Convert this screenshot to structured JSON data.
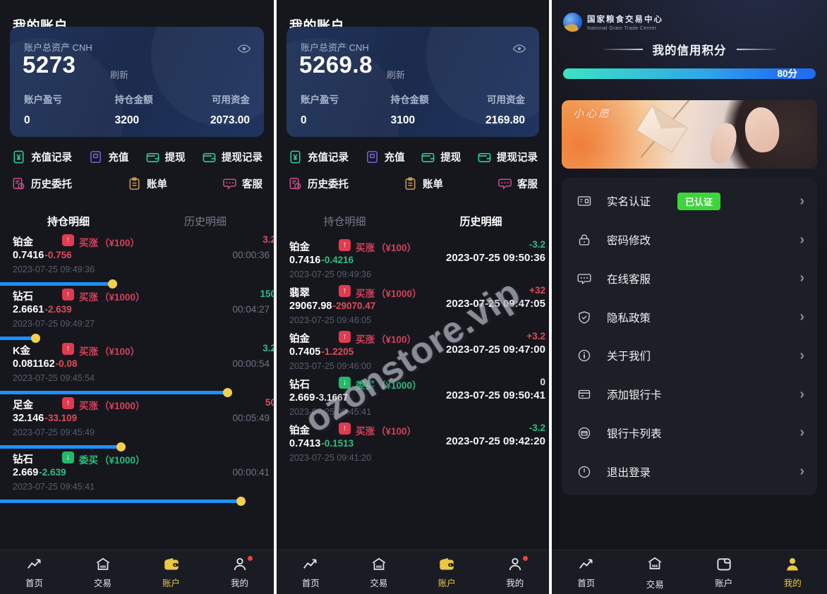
{
  "shared": {
    "title": "我的账户",
    "asset_label": "账户总资产 CNH",
    "refresh": "刷新",
    "stat_labels": [
      "账户盈亏",
      "持仓金额",
      "可用资金"
    ],
    "actions_row1": [
      "充值记录",
      "充值",
      "提现",
      "提现记录"
    ],
    "actions_row2": [
      "历史委托",
      "账单",
      "客服"
    ],
    "tabs": {
      "positions": "持仓明细",
      "history": "历史明细"
    },
    "nav": {
      "home": "首页",
      "trade": "交易",
      "account": "账户",
      "mine": "我的"
    }
  },
  "screen1": {
    "total": "5273",
    "stats": [
      "0",
      "3200",
      "2073.00"
    ],
    "positions": [
      {
        "name": "铂金",
        "arrow": "↑",
        "dir": "up",
        "type": "买涨",
        "amount": "（¥100）",
        "open": "0.7416",
        "close": "-0.756",
        "close_color": "red",
        "date": "2023-07-25 09:49:36",
        "result": "3.2",
        "result_color": "red",
        "timer": "00:00:36",
        "progress": 41
      },
      {
        "name": "钻石",
        "arrow": "↑",
        "dir": "up",
        "type": "买涨",
        "amount": "（¥1000）",
        "open": "2.6661",
        "close": "-2.639",
        "close_color": "red",
        "date": "2023-07-25 09:49:27",
        "result": "150",
        "result_color": "green",
        "timer": "00:04:27",
        "progress": 13
      },
      {
        "name": "K金",
        "arrow": "↑",
        "dir": "up",
        "type": "买涨",
        "amount": "（¥100）",
        "open": "0.081162",
        "close": "-0.08",
        "close_color": "red",
        "date": "2023-07-25 09:45:54",
        "result": "3.2",
        "result_color": "green",
        "timer": "00:00:54",
        "progress": 83
      },
      {
        "name": "足金",
        "arrow": "↑",
        "dir": "up",
        "type": "买涨",
        "amount": "（¥1000）",
        "open": "32.146",
        "close": "-33.109",
        "close_color": "red",
        "date": "2023-07-25 09:45:49",
        "result": "50",
        "result_color": "red",
        "timer": "00:05:49",
        "progress": 44
      },
      {
        "name": "钻石",
        "arrow": "↓",
        "dir": "down",
        "type": "委买",
        "amount": "（¥1000）",
        "open": "2.669",
        "close": "-2.639",
        "close_color": "green",
        "date": "2023-07-25 09:45:41",
        "timer": "00:00:41",
        "progress": 88
      }
    ]
  },
  "screen2": {
    "total": "5269.8",
    "stats": [
      "0",
      "3100",
      "2169.80"
    ],
    "watermark": "ozonstore.vip",
    "history": [
      {
        "name": "铂金",
        "arrow": "↑",
        "dir": "up",
        "type": "买涨",
        "amount": "（¥100）",
        "open": "0.7416",
        "close": "-0.4216",
        "close_color": "green",
        "date": "2023-07-25 09:49:36",
        "result": "-3.2",
        "result_color": "green",
        "close_time": "2023-07-25 09:50:36"
      },
      {
        "name": "翡翠",
        "arrow": "↑",
        "dir": "up",
        "type": "买涨",
        "amount": "（¥1000）",
        "open": "29067.98",
        "close": "-29070.47",
        "close_color": "red",
        "date": "2023-07-25 09:46:05",
        "result": "+32",
        "result_color": "red",
        "close_time": "2023-07-25 09:47:05"
      },
      {
        "name": "铂金",
        "arrow": "↑",
        "dir": "up",
        "type": "买涨",
        "amount": "（¥100）",
        "open": "0.7405",
        "close": "-1.2205",
        "close_color": "red",
        "date": "2023-07-25 09:46:00",
        "result": "+3.2",
        "result_color": "red",
        "close_time": "2023-07-25 09:47:00"
      },
      {
        "name": "钻石",
        "arrow": "↓",
        "dir": "down",
        "type": "委买",
        "amount": "（¥1000）",
        "open": "2.669",
        "close": "-3.1667",
        "close_color": "white",
        "date": "2023-07-25 09:45:41",
        "result": "0",
        "result_color": "white",
        "close_time": "2023-07-25 09:50:41"
      },
      {
        "name": "铂金",
        "arrow": "↑",
        "dir": "up",
        "type": "买涨",
        "amount": "（¥100）",
        "open": "0.7413",
        "close": "-0.1513",
        "close_color": "green",
        "date": "2023-07-25 09:41:20",
        "result": "-3.2",
        "result_color": "green",
        "close_time": "2023-07-25 09:42:20"
      }
    ]
  },
  "screen3": {
    "logo_cn": "国家粮食交易中心",
    "logo_en": "National Grain Trade Center",
    "score_title": "我的信用积分",
    "score_label": "80分",
    "banner_caption": "小心愿",
    "menu": [
      {
        "label": "实名认证",
        "badge": "已认证"
      },
      {
        "label": "密码修改"
      },
      {
        "label": "在线客服"
      },
      {
        "label": "隐私政策"
      },
      {
        "label": "关于我们"
      },
      {
        "label": "添加银行卡"
      },
      {
        "label": "银行卡列表"
      },
      {
        "label": "退出登录"
      }
    ]
  },
  "colors": {
    "accent_yellow": "#ecc645",
    "up_red": "#e14b5a",
    "down_green": "#2fbf83",
    "bar_blue": "#1e8ffd",
    "verified_green": "#3ed43c",
    "card_blue": "#1b2b4d"
  }
}
